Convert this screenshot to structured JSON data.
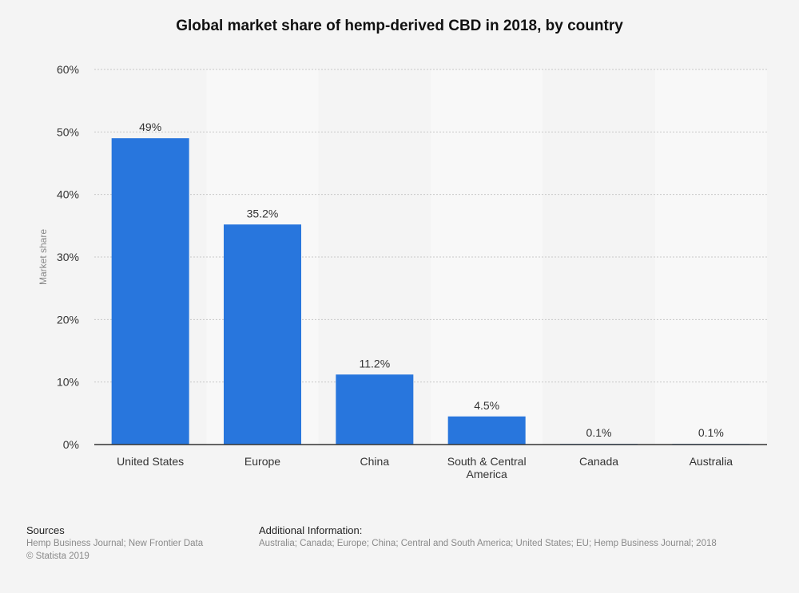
{
  "chart_data": {
    "type": "bar",
    "title": "Global market share of hemp-derived CBD in 2018, by country",
    "xlabel": "",
    "ylabel": "Market share",
    "categories": [
      "United States",
      "Europe",
      "China",
      "South & Central America",
      "Canada",
      "Australia"
    ],
    "category_lines": [
      [
        "United States"
      ],
      [
        "Europe"
      ],
      [
        "China"
      ],
      [
        "South & Central",
        "America"
      ],
      [
        "Canada"
      ],
      [
        "Australia"
      ]
    ],
    "values": [
      49,
      35.2,
      11.2,
      4.5,
      0.1,
      0.1
    ],
    "data_labels": [
      "49%",
      "35.2%",
      "11.2%",
      "4.5%",
      "0.1%",
      "0.1%"
    ],
    "yticks": [
      0,
      10,
      20,
      30,
      40,
      50,
      60
    ],
    "ytick_labels": [
      "0%",
      "10%",
      "20%",
      "30%",
      "40%",
      "50%",
      "60%"
    ],
    "ylim": [
      0,
      60
    ],
    "grid": true,
    "colors": {
      "bar": "#2876dd",
      "grid": "#c8c8c8",
      "band_light": "#f8f8f8",
      "band_dark": "#f4f4f4",
      "axis": "#333333"
    }
  },
  "footer": {
    "sources_heading": "Sources",
    "sources_line1": "Hemp Business Journal; New Frontier Data",
    "sources_line2": "© Statista 2019",
    "additional_heading": "Additional Information:",
    "additional_text": "Australia; Canada; Europe; China; Central and South America; United States; EU; Hemp Business Journal; 2018"
  }
}
